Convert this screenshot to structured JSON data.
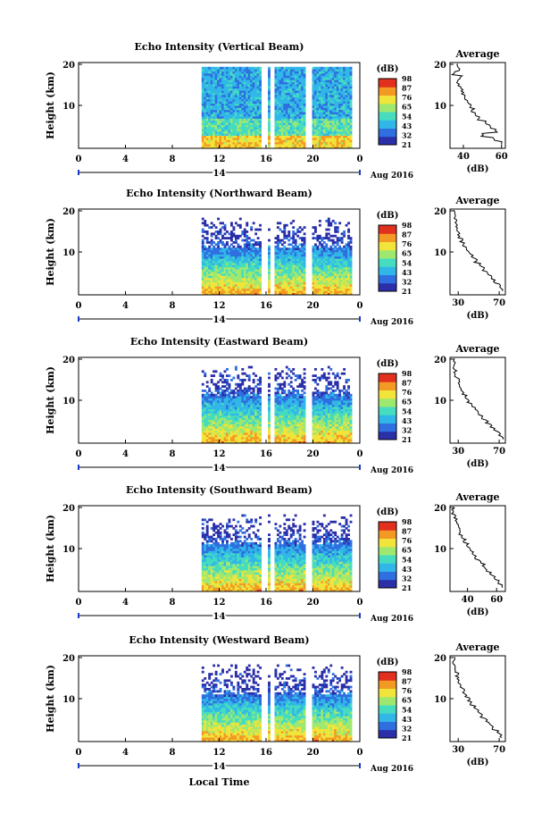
{
  "figure": {
    "xlabel_bottom": "Local Time",
    "date_label": "Aug 2016",
    "day_label": "14",
    "height_label": "Height (km)",
    "avg_title": "Average",
    "avg_xlabel": "(dB)",
    "cbar_unit": "(dB)",
    "time_ticks": [
      "0",
      "4",
      "8",
      "12",
      "16",
      "20",
      "0"
    ],
    "height_ticks": [
      "10",
      "20"
    ],
    "cbar_ticks": [
      "21",
      "32",
      "43",
      "54",
      "65",
      "76",
      "87",
      "98"
    ],
    "cbar_colors": [
      "#2b2fa8",
      "#2f6fe0",
      "#30b7e8",
      "#45dcc0",
      "#9fe870",
      "#f1e43a",
      "#f39a25",
      "#e2301f"
    ]
  },
  "chart_data": [
    {
      "type": "heatmap",
      "title": "Echo Intensity (Vertical Beam)",
      "avg_ticks": [
        "40",
        "60"
      ],
      "avg_xlim": [
        33,
        62
      ],
      "avg_profile_heights": [
        1,
        2,
        3,
        4,
        5,
        6,
        7,
        8,
        9,
        10,
        11,
        12,
        13,
        14,
        15,
        16,
        17,
        18,
        19,
        20
      ],
      "avg_profile_values": [
        60,
        56,
        50,
        57,
        54,
        52,
        48,
        46,
        45,
        44,
        43,
        41,
        40,
        39,
        38,
        37,
        39,
        35,
        38,
        37
      ]
    },
    {
      "type": "heatmap",
      "title": "Echo Intensity (Northward Beam)",
      "avg_ticks": [
        "30",
        "70"
      ],
      "avg_xlim": [
        22,
        76
      ],
      "avg_profile_heights": [
        1,
        2,
        3,
        4,
        5,
        6,
        7,
        8,
        9,
        10,
        11,
        12,
        13,
        14,
        15,
        16,
        17,
        18,
        19,
        20
      ],
      "avg_profile_values": [
        72,
        70,
        65,
        62,
        58,
        55,
        51,
        47,
        44,
        41,
        38,
        35,
        33,
        31,
        30,
        29,
        28,
        27,
        26,
        26
      ]
    },
    {
      "type": "heatmap",
      "title": "Echo Intensity (Eastward Beam)",
      "avg_ticks": [
        "30",
        "70"
      ],
      "avg_xlim": [
        22,
        76
      ],
      "avg_profile_heights": [
        1,
        2,
        3,
        4,
        5,
        6,
        7,
        8,
        9,
        10,
        11,
        12,
        13,
        14,
        15,
        16,
        17,
        18,
        19,
        20
      ],
      "avg_profile_values": [
        73,
        71,
        66,
        62,
        58,
        54,
        50,
        47,
        43,
        40,
        37,
        35,
        33,
        31,
        30,
        28,
        27,
        26,
        26,
        25
      ]
    },
    {
      "type": "heatmap",
      "title": "Echo Intensity (Southward Beam)",
      "avg_ticks": [
        "40",
        "60"
      ],
      "avg_xlim": [
        28,
        66
      ],
      "avg_profile_heights": [
        1,
        2,
        3,
        4,
        5,
        6,
        7,
        8,
        9,
        10,
        11,
        12,
        13,
        14,
        15,
        16,
        17,
        18,
        19,
        20
      ],
      "avg_profile_values": [
        64,
        62,
        58,
        56,
        53,
        51,
        48,
        46,
        44,
        42,
        40,
        38,
        36,
        35,
        34,
        33,
        32,
        31,
        30,
        30
      ]
    },
    {
      "type": "heatmap",
      "title": "Echo Intensity (Westward Beam)",
      "avg_ticks": [
        "30",
        "70"
      ],
      "avg_xlim": [
        22,
        76
      ],
      "avg_profile_heights": [
        1,
        2,
        3,
        4,
        5,
        6,
        7,
        8,
        9,
        10,
        11,
        12,
        13,
        14,
        15,
        16,
        17,
        18,
        19,
        20
      ],
      "avg_profile_values": [
        71,
        69,
        64,
        61,
        57,
        53,
        50,
        46,
        43,
        40,
        37,
        35,
        33,
        31,
        30,
        29,
        28,
        27,
        26,
        26
      ]
    }
  ]
}
